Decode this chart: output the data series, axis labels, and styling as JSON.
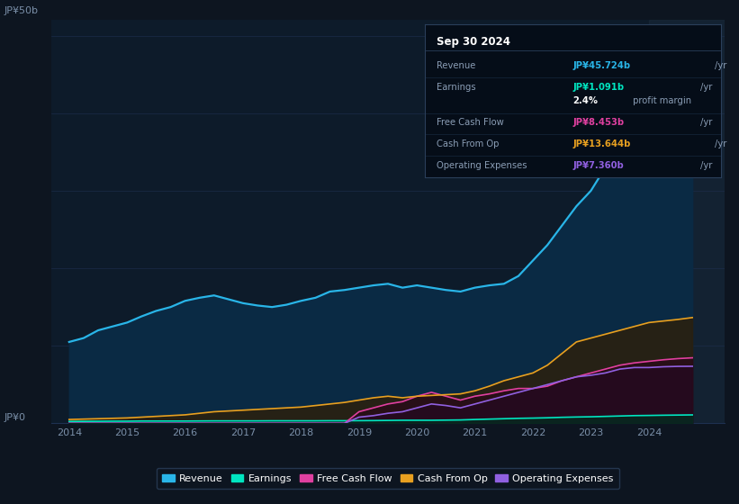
{
  "bg_color": "#0d1520",
  "plot_bg_color": "#0d1b2a",
  "grid_color": "#1e3050",
  "tick_label_color": "#7a8fa8",
  "years": [
    2014,
    2014.25,
    2014.5,
    2014.75,
    2015,
    2015.25,
    2015.5,
    2015.75,
    2016,
    2016.25,
    2016.5,
    2016.75,
    2017,
    2017.25,
    2017.5,
    2017.75,
    2018,
    2018.25,
    2018.5,
    2018.75,
    2019,
    2019.25,
    2019.5,
    2019.75,
    2020,
    2020.25,
    2020.5,
    2020.75,
    2021,
    2021.25,
    2021.5,
    2021.75,
    2022,
    2022.25,
    2022.5,
    2022.75,
    2023,
    2023.25,
    2023.5,
    2023.75,
    2024,
    2024.25,
    2024.5,
    2024.75
  ],
  "revenue": [
    10.5,
    11.0,
    12.0,
    12.5,
    13.0,
    13.8,
    14.5,
    15.0,
    15.8,
    16.2,
    16.5,
    16.0,
    15.5,
    15.2,
    15.0,
    15.3,
    15.8,
    16.2,
    17.0,
    17.2,
    17.5,
    17.8,
    18.0,
    17.5,
    17.8,
    17.5,
    17.2,
    17.0,
    17.5,
    17.8,
    18.0,
    19.0,
    21.0,
    23.0,
    25.5,
    28.0,
    30.0,
    33.0,
    36.0,
    39.5,
    42.0,
    43.5,
    45.0,
    45.724
  ],
  "earnings": [
    0.25,
    0.26,
    0.27,
    0.28,
    0.28,
    0.3,
    0.3,
    0.3,
    0.3,
    0.31,
    0.32,
    0.32,
    0.32,
    0.32,
    0.33,
    0.33,
    0.33,
    0.33,
    0.34,
    0.34,
    0.35,
    0.36,
    0.38,
    0.4,
    0.4,
    0.4,
    0.42,
    0.44,
    0.5,
    0.55,
    0.6,
    0.65,
    0.68,
    0.72,
    0.78,
    0.82,
    0.85,
    0.9,
    0.95,
    1.0,
    1.02,
    1.05,
    1.07,
    1.091
  ],
  "free_cash_flow": [
    0.0,
    0.0,
    0.0,
    0.0,
    0.0,
    0.0,
    0.0,
    0.0,
    0.0,
    0.0,
    0.0,
    0.0,
    0.0,
    0.0,
    0.0,
    0.0,
    0.0,
    0.0,
    0.0,
    0.0,
    1.5,
    2.0,
    2.5,
    2.8,
    3.5,
    4.0,
    3.5,
    3.0,
    3.5,
    3.8,
    4.2,
    4.5,
    4.5,
    4.8,
    5.5,
    6.0,
    6.5,
    7.0,
    7.5,
    7.8,
    8.0,
    8.2,
    8.35,
    8.453
  ],
  "cash_from_op": [
    0.5,
    0.55,
    0.6,
    0.65,
    0.7,
    0.8,
    0.9,
    1.0,
    1.1,
    1.3,
    1.5,
    1.6,
    1.7,
    1.8,
    1.9,
    2.0,
    2.1,
    2.3,
    2.5,
    2.7,
    3.0,
    3.3,
    3.5,
    3.3,
    3.5,
    3.6,
    3.7,
    3.8,
    4.2,
    4.8,
    5.5,
    6.0,
    6.5,
    7.5,
    9.0,
    10.5,
    11.0,
    11.5,
    12.0,
    12.5,
    13.0,
    13.2,
    13.4,
    13.644
  ],
  "operating_expenses": [
    0.0,
    0.0,
    0.0,
    0.0,
    0.0,
    0.0,
    0.0,
    0.0,
    0.0,
    0.0,
    0.0,
    0.0,
    0.0,
    0.0,
    0.0,
    0.0,
    0.0,
    0.0,
    0.0,
    0.0,
    0.8,
    1.0,
    1.3,
    1.5,
    2.0,
    2.5,
    2.3,
    2.0,
    2.5,
    3.0,
    3.5,
    4.0,
    4.5,
    5.0,
    5.5,
    6.0,
    6.2,
    6.5,
    7.0,
    7.2,
    7.2,
    7.3,
    7.35,
    7.36
  ],
  "revenue_color": "#29b5e8",
  "earnings_color": "#00e5c0",
  "fcf_color": "#e040a0",
  "cash_op_color": "#e8a020",
  "op_exp_color": "#9060e0",
  "ylim": [
    0,
    52
  ],
  "xlim": [
    2013.7,
    2025.3
  ],
  "ytick_positions": [
    0,
    50
  ],
  "ytick_labels": [
    "JP¥0",
    "JP¥50b"
  ],
  "xticks": [
    2014,
    2015,
    2016,
    2017,
    2018,
    2019,
    2020,
    2021,
    2022,
    2023,
    2024
  ],
  "forecast_x": 2024.0,
  "info_box": {
    "date": "Sep 30 2024",
    "rows": [
      {
        "label": "Revenue",
        "value": "JP¥45.724b",
        "unit": "/yr",
        "value_color": "#29b5e8"
      },
      {
        "label": "Earnings",
        "value": "JP¥1.091b",
        "unit": "/yr",
        "value_color": "#00e5c0"
      },
      {
        "label": "",
        "value": "2.4%",
        "unit": " profit margin",
        "value_color": "#ffffff"
      },
      {
        "label": "Free Cash Flow",
        "value": "JP¥8.453b",
        "unit": "/yr",
        "value_color": "#e040a0"
      },
      {
        "label": "Cash From Op",
        "value": "JP¥13.644b",
        "unit": "/yr",
        "value_color": "#e8a020"
      },
      {
        "label": "Operating Expenses",
        "value": "JP¥7.360b",
        "unit": "/yr",
        "value_color": "#9060e0"
      }
    ]
  },
  "legend": [
    {
      "label": "Revenue",
      "color": "#29b5e8"
    },
    {
      "label": "Earnings",
      "color": "#00e5c0"
    },
    {
      "label": "Free Cash Flow",
      "color": "#e040a0"
    },
    {
      "label": "Cash From Op",
      "color": "#e8a020"
    },
    {
      "label": "Operating Expenses",
      "color": "#9060e0"
    }
  ]
}
